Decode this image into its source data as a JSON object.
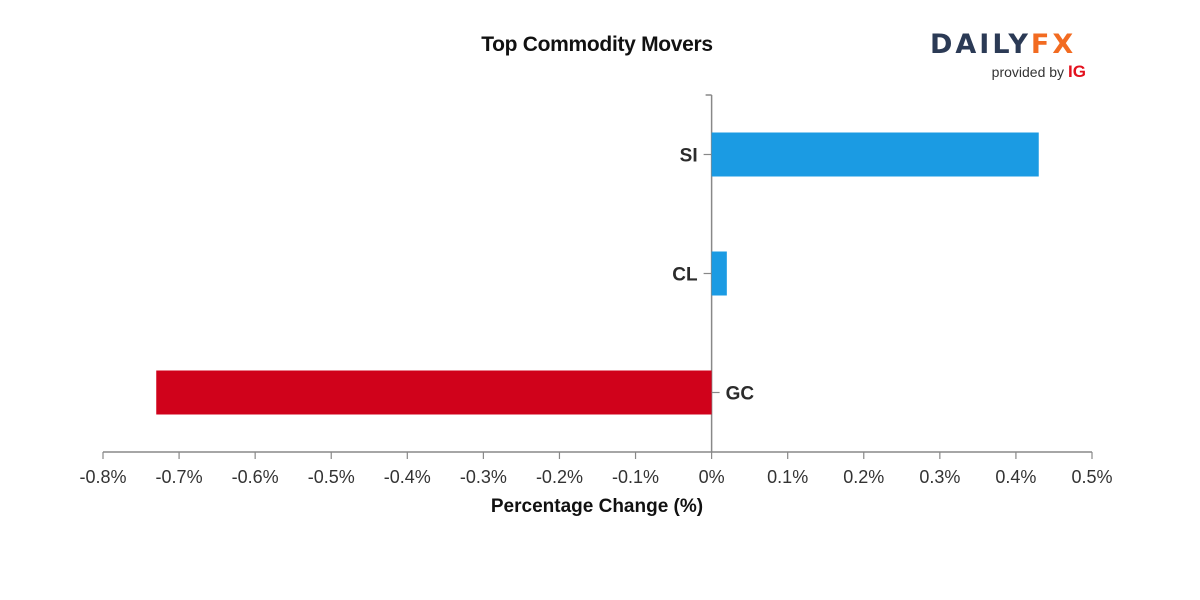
{
  "chart_data": {
    "type": "bar",
    "orientation": "horizontal",
    "title": "Top Commodity Movers",
    "xlabel": "Percentage Change (%)",
    "ylabel": "",
    "categories": [
      "SI",
      "CL",
      "GC"
    ],
    "values": [
      0.43,
      0.02,
      -0.73
    ],
    "xlim": [
      -0.8,
      0.5
    ],
    "xticks": [
      -0.8,
      -0.7,
      -0.6,
      -0.5,
      -0.4,
      -0.3,
      -0.2,
      -0.1,
      0,
      0.1,
      0.2,
      0.3,
      0.4,
      0.5
    ],
    "xtick_labels": [
      "-0.8%",
      "-0.7%",
      "-0.6%",
      "-0.5%",
      "-0.4%",
      "-0.3%",
      "-0.2%",
      "-0.1%",
      "0%",
      "0.1%",
      "0.2%",
      "0.3%",
      "0.4%",
      "0.5%"
    ],
    "colors": {
      "positive": "#1b9be3",
      "negative": "#d0021b",
      "axis": "#888888"
    },
    "grid": false
  },
  "branding": {
    "logo_daily": "DAILY",
    "logo_fx": "FX",
    "provided_by": "provided by",
    "ig": "IG"
  }
}
